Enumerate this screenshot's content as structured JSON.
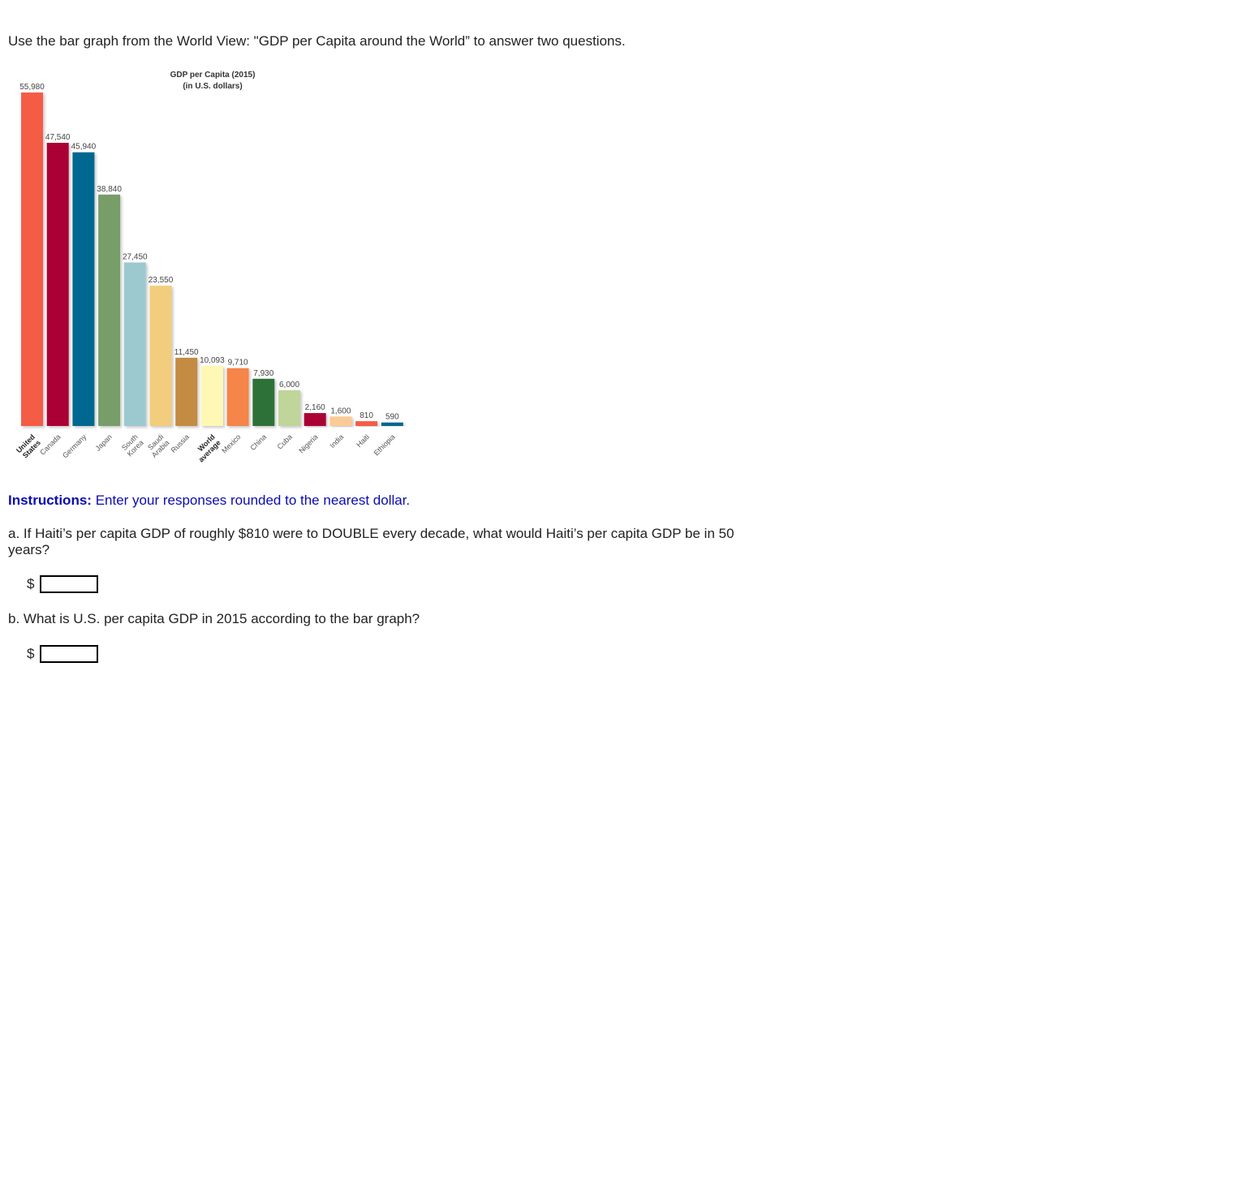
{
  "intro_text": "Use the bar graph from the World View: \"GDP per Capita around the World” to answer two questions.",
  "instructions": {
    "label": "Instructions:",
    "text": "Enter your responses rounded to the nearest dollar."
  },
  "questions": [
    {
      "text": "a. If Haiti’s per capita GDP of roughly $810 were to DOUBLE every decade, what would Haiti’s per capita GDP be in 50 years?",
      "currency": "$",
      "value": ""
    },
    {
      "text": "b. What is U.S. per capita GDP in 2015 according to the bar graph?",
      "currency": "$",
      "value": ""
    }
  ],
  "chart_data": {
    "type": "bar",
    "title": "GDP per Capita (2015)",
    "subtitle": "(in U.S. dollars)",
    "categories": [
      "United States",
      "Canada",
      "Germany",
      "Japan",
      "South Korea",
      "Saudi Arabia",
      "Russia",
      "World average",
      "Mexico",
      "China",
      "Cuba",
      "Nigeria",
      "India",
      "Haiti",
      "Ethiopia"
    ],
    "category_lines": [
      [
        "United",
        "States"
      ],
      [
        "Canada"
      ],
      [
        "Germany"
      ],
      [
        "Japan"
      ],
      [
        "South",
        "Korea"
      ],
      [
        "Saudi",
        "Arabia"
      ],
      [
        "Russia"
      ],
      [
        "World",
        "average"
      ],
      [
        "Mexico"
      ],
      [
        "China"
      ],
      [
        "Cuba"
      ],
      [
        "Nigeria"
      ],
      [
        "India"
      ],
      [
        "Haiti"
      ],
      [
        "Ethiopia"
      ]
    ],
    "bold_categories": [
      "United States",
      "World average"
    ],
    "values": [
      55980,
      47540,
      45940,
      38840,
      27450,
      23550,
      11450,
      10093,
      9710,
      7930,
      6000,
      2160,
      1600,
      810,
      590
    ],
    "value_labels": [
      "55,980",
      "47,540",
      "45,940",
      "38,840",
      "27,450",
      "23,550",
      "11,450",
      "10,093",
      "9,710",
      "7,930",
      "6,000",
      "2,160",
      "1,600",
      "810",
      "590"
    ],
    "colors": [
      "#f55c44",
      "#ab0536",
      "#006890",
      "#779d67",
      "#9cc9cf",
      "#f2cd7e",
      "#c48b42",
      "#fff8b4",
      "#f5854a",
      "#2f7138",
      "#bfd59a",
      "#ab0536",
      "#fcca94",
      "#f55c44",
      "#006890"
    ],
    "ylim": [
      0,
      55980
    ],
    "grid": false,
    "xlabel": "",
    "ylabel": ""
  }
}
